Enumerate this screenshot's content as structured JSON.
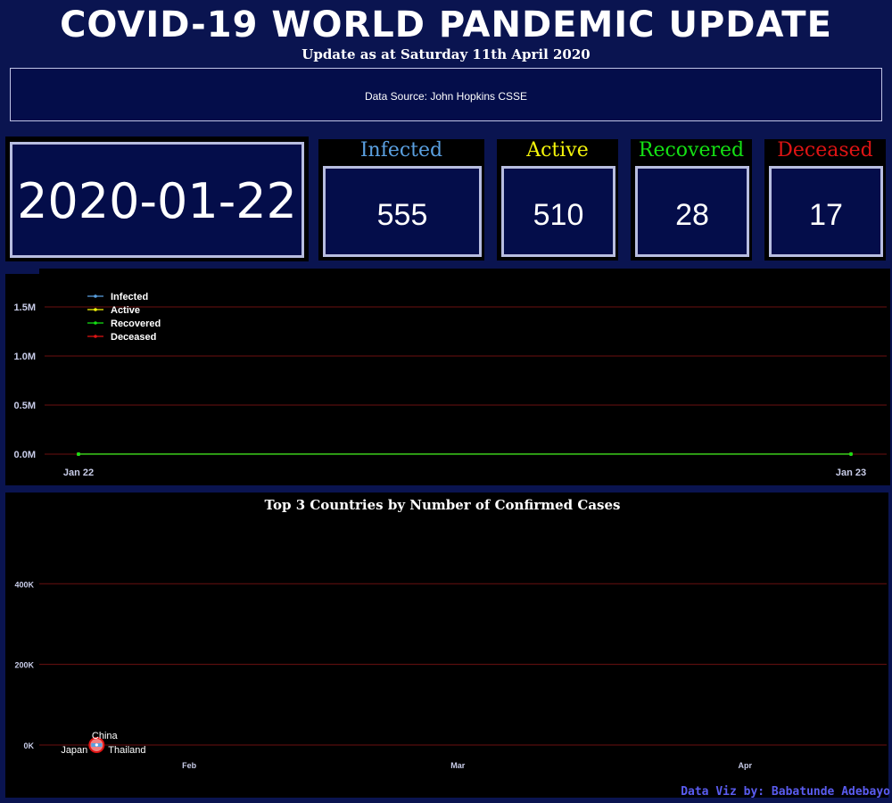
{
  "header": {
    "title": "COVID-19 WORLD PANDEMIC UPDATE",
    "subtitle": "Update as at Saturday 11th April 2020",
    "source": "Data Source: John Hopkins CSSE"
  },
  "summary": {
    "date": "2020-01-22",
    "stats": [
      {
        "label": "Infected",
        "value": "555",
        "color": "#5aa0e0"
      },
      {
        "label": "Active",
        "value": "510",
        "color": "#f5f50a"
      },
      {
        "label": "Recovered",
        "value": "28",
        "color": "#14e014"
      },
      {
        "label": "Deceased",
        "value": "17",
        "color": "#e01414"
      }
    ]
  },
  "footer": {
    "credit": "Data Viz by: Babatunde Adebayo"
  },
  "colors": {
    "background": "#0a1450",
    "panel": "#040d4a",
    "gridline": "#6b1010"
  },
  "chart_data": [
    {
      "type": "line",
      "title": "",
      "xlabel": "",
      "ylabel": "",
      "x": [
        "Jan 22",
        "Jan 23"
      ],
      "series": [
        {
          "name": "Infected",
          "color": "#5aa0e0",
          "values": [
            555,
            654
          ]
        },
        {
          "name": "Active",
          "color": "#f5f50a",
          "values": [
            510,
            605
          ]
        },
        {
          "name": "Recovered",
          "color": "#14e014",
          "values": [
            28,
            30
          ]
        },
        {
          "name": "Deceased",
          "color": "#e01414",
          "values": [
            17,
            18
          ]
        }
      ],
      "yticks": [
        {
          "label": "0.0M",
          "value": 0
        },
        {
          "label": "0.5M",
          "value": 500000
        },
        {
          "label": "1.0M",
          "value": 1000000
        },
        {
          "label": "1.5M",
          "value": 1500000
        }
      ],
      "xticks": [
        "Jan 22",
        "Jan 23"
      ],
      "ylim": [
        0,
        1800000
      ],
      "grid": "horizontal",
      "legend_position": "top-left"
    },
    {
      "type": "scatter",
      "title": "Top 3 Countries by Number of Confirmed Cases",
      "xlabel": "",
      "ylabel": "",
      "x_range": [
        "2020-01-16",
        "2020-04-16"
      ],
      "points": [
        {
          "label": "China",
          "x": "2020-01-22",
          "y": 548
        },
        {
          "label": "Japan",
          "x": "2020-01-22",
          "y": 2
        },
        {
          "label": "Thailand",
          "x": "2020-01-22",
          "y": 2
        }
      ],
      "yticks": [
        {
          "label": "0K",
          "value": 0
        },
        {
          "label": "200K",
          "value": 200000
        },
        {
          "label": "400K",
          "value": 400000
        }
      ],
      "xticks": [
        {
          "label": "Feb",
          "x": "2020-02-01"
        },
        {
          "label": "Mar",
          "x": "2020-03-01"
        },
        {
          "label": "Apr",
          "x": "2020-04-01"
        }
      ],
      "ylim": [
        0,
        560000
      ],
      "grid": "horizontal"
    }
  ]
}
